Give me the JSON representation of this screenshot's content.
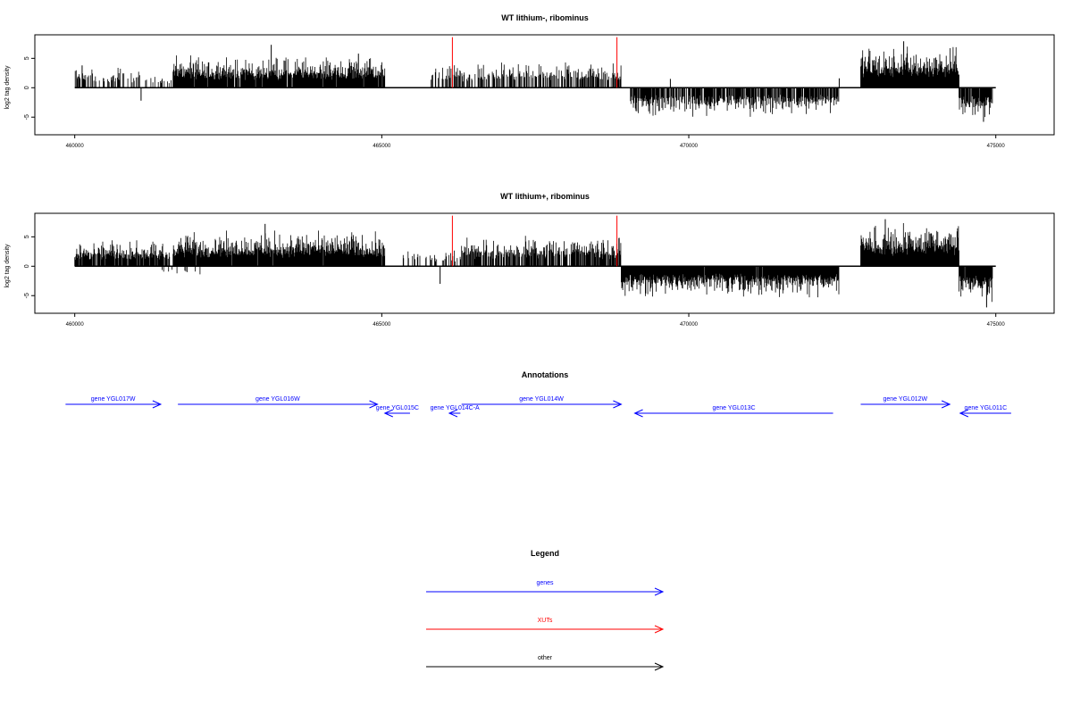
{
  "chart_data": [
    {
      "type": "bar",
      "title": "WT lithium-, ribominus",
      "ylabel": "log2 tag density",
      "xlabel": "",
      "xlim": [
        459350,
        475950
      ],
      "ylim": [
        -8,
        9
      ],
      "x_ticks": [
        460000,
        465000,
        470000,
        475000
      ],
      "y_ticks": [
        -5,
        0,
        5
      ],
      "grid": false,
      "baseline": {
        "from": 460000,
        "to": 475000,
        "color": "#000000"
      },
      "segments": [
        {
          "start": 460000,
          "end": 460800,
          "sign": 1,
          "max": 3.2,
          "density": 0.45
        },
        {
          "start": 460800,
          "end": 461600,
          "sign": 1,
          "max": 2.6,
          "density": 0.2
        },
        {
          "start": 461600,
          "end": 465050,
          "sign": 1,
          "max": 5.0,
          "density": 0.95
        },
        {
          "start": 465800,
          "end": 468900,
          "sign": 1,
          "max": 4.0,
          "density": 0.55
        },
        {
          "start": 469050,
          "end": 472450,
          "sign": -1,
          "max": 4.5,
          "density": 0.8
        },
        {
          "start": 472800,
          "end": 474400,
          "sign": 1,
          "max": 6.5,
          "density": 1.0
        },
        {
          "start": 474400,
          "end": 474950,
          "sign": -1,
          "max": 5.0,
          "density": 0.95
        }
      ],
      "spikes": [
        {
          "x": 460120,
          "y": 3.8
        },
        {
          "x": 461080,
          "y": -2.2
        },
        {
          "x": 463200,
          "y": 7.3
        },
        {
          "x": 464620,
          "y": 5.8
        },
        {
          "x": 469700,
          "y": 1.5
        },
        {
          "x": 472450,
          "y": 1.6
        },
        {
          "x": 473500,
          "y": 7.9
        },
        {
          "x": 474800,
          "y": -5.8
        }
      ],
      "red_markers": [
        {
          "x": 466150,
          "y": 8.6
        },
        {
          "x": 468830,
          "y": 8.6
        }
      ]
    },
    {
      "type": "bar",
      "title": "WT lithium+, ribominus",
      "ylabel": "log2 tag density",
      "xlabel": "",
      "xlim": [
        459350,
        475950
      ],
      "ylim": [
        -8,
        9
      ],
      "x_ticks": [
        460000,
        465000,
        470000,
        475000
      ],
      "y_ticks": [
        -5,
        0,
        5
      ],
      "grid": false,
      "baseline": {
        "from": 460000,
        "to": 475000,
        "color": "#000000"
      },
      "segments": [
        {
          "start": 460000,
          "end": 461550,
          "sign": 1,
          "max": 4.0,
          "density": 0.9
        },
        {
          "start": 461600,
          "end": 465050,
          "sign": 1,
          "max": 5.5,
          "density": 0.98
        },
        {
          "start": 465300,
          "end": 466300,
          "sign": 1,
          "max": 2.5,
          "density": 0.3
        },
        {
          "start": 466300,
          "end": 468900,
          "sign": 1,
          "max": 4.8,
          "density": 0.75
        },
        {
          "start": 468900,
          "end": 472450,
          "sign": -1,
          "max": 4.8,
          "density": 0.98
        },
        {
          "start": 472800,
          "end": 474400,
          "sign": 1,
          "max": 6.8,
          "density": 1.0
        },
        {
          "start": 474400,
          "end": 474950,
          "sign": -1,
          "max": 5.5,
          "density": 0.98
        },
        {
          "start": 461400,
          "end": 462200,
          "sign": -1,
          "max": 1.8,
          "density": 0.06
        }
      ],
      "spikes": [
        {
          "x": 463100,
          "y": 7.2
        },
        {
          "x": 465950,
          "y": -3.0
        },
        {
          "x": 473200,
          "y": 8.0
        },
        {
          "x": 474850,
          "y": -7.0
        }
      ],
      "red_markers": [
        {
          "x": 466150,
          "y": 8.6
        },
        {
          "x": 468830,
          "y": 8.6
        }
      ]
    }
  ],
  "annotations": {
    "title": "Annotations",
    "xlim": [
      459350,
      475950
    ],
    "genes": [
      {
        "label": "gene YGL017W",
        "start": 459850,
        "end": 461400,
        "strand": "+",
        "row": 0,
        "color": "#0000ff"
      },
      {
        "label": "gene YGL016W",
        "start": 461680,
        "end": 464930,
        "strand": "+",
        "row": 0,
        "color": "#0000ff"
      },
      {
        "label": "gene YGL015C",
        "start": 465050,
        "end": 465460,
        "strand": "-",
        "row": 1,
        "color": "#0000ff"
      },
      {
        "label": "gene YGL014C-A",
        "start": 466100,
        "end": 466280,
        "strand": "-",
        "row": 1,
        "color": "#0000ff"
      },
      {
        "label": "gene YGL014W",
        "start": 466300,
        "end": 468900,
        "strand": "+",
        "row": 0,
        "color": "#0000ff"
      },
      {
        "label": "gene YGL013C",
        "start": 469120,
        "end": 472350,
        "strand": "-",
        "row": 1,
        "color": "#0000ff"
      },
      {
        "label": "gene YGL012W",
        "start": 472800,
        "end": 474250,
        "strand": "+",
        "row": 0,
        "color": "#0000ff"
      },
      {
        "label": "gene YGL011C",
        "start": 474420,
        "end": 475250,
        "strand": "-",
        "row": 1,
        "color": "#0000ff"
      }
    ]
  },
  "legend": {
    "title": "Legend",
    "items": [
      {
        "label": "genes",
        "color": "#0000ff"
      },
      {
        "label": "XUTs",
        "color": "#ff0000"
      },
      {
        "label": "other",
        "color": "#000000"
      }
    ]
  }
}
